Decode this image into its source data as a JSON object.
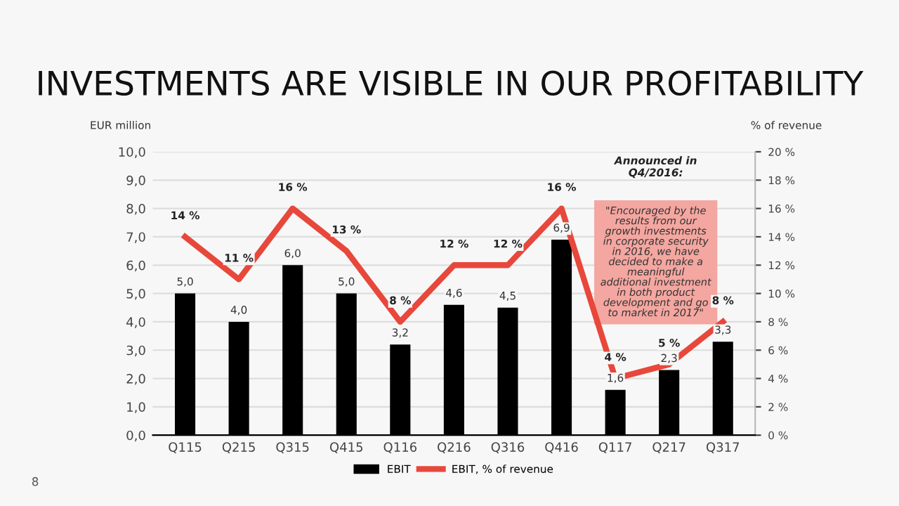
{
  "chart_data": {
    "type": "bar",
    "title": "INVESTMENTS ARE VISIBLE IN OUR PROFITABILITY",
    "ylabel": "EUR million",
    "y2label": "% of revenue",
    "categories": [
      "Q115",
      "Q215",
      "Q315",
      "Q415",
      "Q116",
      "Q216",
      "Q316",
      "Q416",
      "Q117",
      "Q217",
      "Q317"
    ],
    "series": [
      {
        "name": "EBIT",
        "color": "#000000",
        "values": [
          5.0,
          4.0,
          6.0,
          5.0,
          3.2,
          4.6,
          4.5,
          6.9,
          1.6,
          2.3,
          3.3
        ],
        "value_labels": [
          "5,0",
          "4,0",
          "6,0",
          "5,0",
          "3,2",
          "4,6",
          "4,5",
          "6,9",
          "1,6",
          "2,3",
          "3,3"
        ]
      },
      {
        "name": "EBIT, % of revenue",
        "type": "line",
        "axis": "y2",
        "color": "#e8473b",
        "values": [
          14,
          11,
          16,
          13,
          8,
          12,
          12,
          16,
          4,
          5,
          8
        ],
        "value_labels": [
          "14 %",
          "11 %",
          "16 %",
          "13 %",
          "8 %",
          "12 %",
          "12 %",
          "16 %",
          "4 %",
          "5 %",
          "8 %"
        ]
      }
    ],
    "ylim": [
      0,
      10
    ],
    "yticks": [
      {
        "value": 0,
        "label": "0,0"
      },
      {
        "value": 1,
        "label": "1,0"
      },
      {
        "value": 2,
        "label": "2,0"
      },
      {
        "value": 3,
        "label": "3,0"
      },
      {
        "value": 4,
        "label": "4,0"
      },
      {
        "value": 5,
        "label": "5,0"
      },
      {
        "value": 6,
        "label": "6,0"
      },
      {
        "value": 7,
        "label": "7,0"
      },
      {
        "value": 8,
        "label": "8,0"
      },
      {
        "value": 9,
        "label": "9,0"
      },
      {
        "value": 10,
        "label": "10,0"
      }
    ],
    "y2lim": [
      0,
      20
    ],
    "y2ticks": [
      {
        "value": 0,
        "label": "0 %"
      },
      {
        "value": 2,
        "label": "2 %"
      },
      {
        "value": 4,
        "label": "4 %"
      },
      {
        "value": 6,
        "label": "6 %"
      },
      {
        "value": 8,
        "label": "8 %"
      },
      {
        "value": 10,
        "label": "10 %"
      },
      {
        "value": 12,
        "label": "12 %"
      },
      {
        "value": 14,
        "label": "14 %"
      },
      {
        "value": 16,
        "label": "16 %"
      },
      {
        "value": 18,
        "label": "18 %"
      },
      {
        "value": 20,
        "label": "20 %"
      }
    ],
    "grid": "y",
    "legend": "bottom",
    "marker": "none",
    "line_style": "solid",
    "annotations": [
      "Announced in\nQ4/2016:",
      "\"Encouraged by the\nresults from our\ngrowth investments\nin corporate security\nin 2016, we have\ndecided to make a\nmeaningful\nadditional investment\nin both product\ndevelopment and go\nto market in 2017\"",
      "8"
    ]
  }
}
